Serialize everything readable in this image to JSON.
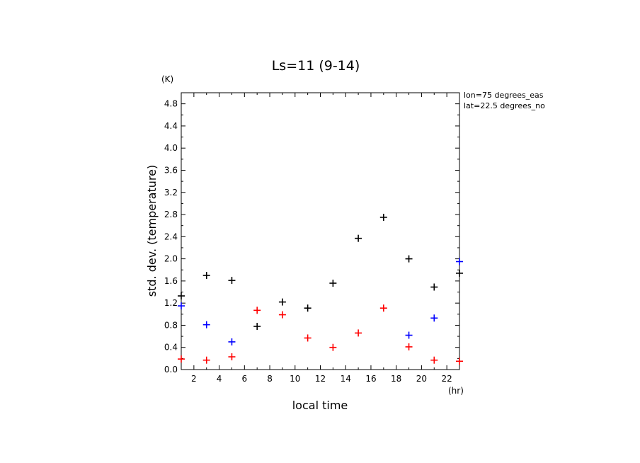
{
  "chart_data": {
    "type": "scatter",
    "title": "Ls=11 (9-14)",
    "xlabel": "local time",
    "ylabel": "std. dev. (temperature)",
    "x_unit": "(hr)",
    "y_unit": "(K)",
    "xlim": [
      1,
      23
    ],
    "ylim": [
      0,
      5.0
    ],
    "x_ticks": [
      "2",
      "4",
      "6",
      "8",
      "10",
      "12",
      "14",
      "16",
      "18",
      "20",
      "22"
    ],
    "y_ticks": [
      "0.0",
      "0.4",
      "0.8",
      "1.2",
      "1.6",
      "2.0",
      "2.4",
      "2.8",
      "3.2",
      "3.6",
      "4.0",
      "4.4",
      "4.8"
    ],
    "annotations": [
      "lon=75 degrees_eas",
      "lat=22.5 degrees_no"
    ],
    "marker": "+",
    "series": [
      {
        "color": "#000000",
        "points": [
          {
            "x": 1,
            "y": 1.33
          },
          {
            "x": 3,
            "y": 1.7
          },
          {
            "x": 5,
            "y": 1.61
          },
          {
            "x": 7,
            "y": 0.78
          },
          {
            "x": 9,
            "y": 1.22
          },
          {
            "x": 11,
            "y": 1.11
          },
          {
            "x": 13,
            "y": 1.56
          },
          {
            "x": 15,
            "y": 2.37
          },
          {
            "x": 17,
            "y": 2.75
          },
          {
            "x": 19,
            "y": 2.0
          },
          {
            "x": 21,
            "y": 1.49
          },
          {
            "x": 23,
            "y": 1.74
          }
        ]
      },
      {
        "color": "#0000ff",
        "points": [
          {
            "x": 1,
            "y": 1.15
          },
          {
            "x": 3,
            "y": 0.81
          },
          {
            "x": 5,
            "y": 0.5
          },
          {
            "x": 19,
            "y": 0.62
          },
          {
            "x": 21,
            "y": 0.93
          },
          {
            "x": 23,
            "y": 1.95
          }
        ]
      },
      {
        "color": "#ff0000",
        "points": [
          {
            "x": 1,
            "y": 0.19
          },
          {
            "x": 3,
            "y": 0.17
          },
          {
            "x": 5,
            "y": 0.23
          },
          {
            "x": 7,
            "y": 1.07
          },
          {
            "x": 9,
            "y": 0.99
          },
          {
            "x": 11,
            "y": 0.57
          },
          {
            "x": 13,
            "y": 0.4
          },
          {
            "x": 15,
            "y": 0.66
          },
          {
            "x": 17,
            "y": 1.11
          },
          {
            "x": 19,
            "y": 0.41
          },
          {
            "x": 21,
            "y": 0.17
          },
          {
            "x": 23,
            "y": 0.15
          }
        ]
      }
    ]
  }
}
